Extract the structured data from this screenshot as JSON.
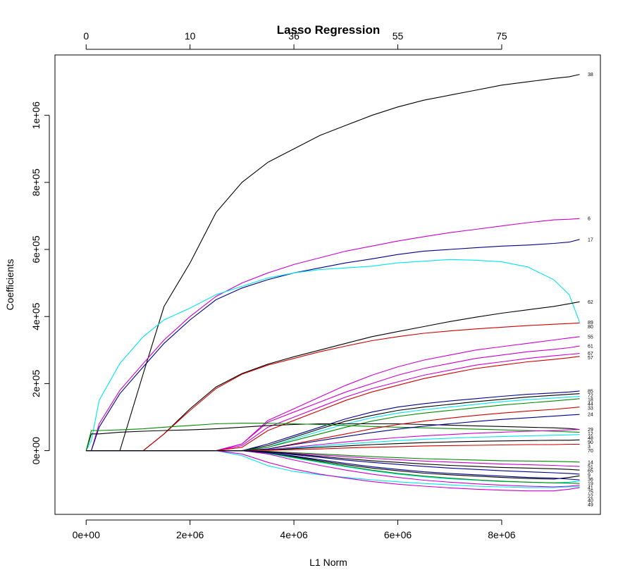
{
  "chart_data": {
    "type": "line",
    "title": "Lasso Regression",
    "xlabel": "L1 Norm",
    "ylabel": "Coefficients",
    "xlim": [
      -600000,
      9900000
    ],
    "ylim": [
      -190000,
      1180000
    ],
    "x_ticks": [
      0,
      2000000,
      4000000,
      6000000,
      8000000
    ],
    "x_tick_labels": [
      "0e+00",
      "2e+06",
      "4e+06",
      "6e+06",
      "8e+06"
    ],
    "y_ticks": [
      0,
      200000,
      400000,
      600000,
      800000,
      1000000
    ],
    "y_tick_labels": [
      "0e+00",
      "2e+05",
      "4e+05",
      "6e+05",
      "8e+05",
      "1e+06"
    ],
    "top_axis_ticks": [
      0,
      2000000,
      4000000,
      6000000,
      8000000
    ],
    "top_axis_labels": [
      "0",
      "10",
      "36",
      "55",
      "75"
    ],
    "grid": false,
    "legend": "none",
    "x": [
      0,
      100000,
      250000,
      650000,
      1100000,
      1500000,
      2000000,
      2500000,
      3000000,
      3500000,
      4000000,
      4500000,
      5000000,
      5500000,
      6000000,
      6500000,
      7000000,
      7500000,
      8000000,
      8500000,
      9000000,
      9300000,
      9500000
    ],
    "series": [
      {
        "name": "38",
        "color": "#000000",
        "values": [
          0,
          0,
          0,
          0,
          230000,
          430000,
          560000,
          710000,
          800000,
          860000,
          900000,
          940000,
          970000,
          1000000,
          1025000,
          1045000,
          1060000,
          1075000,
          1090000,
          1100000,
          1110000,
          1115000,
          1122000
        ]
      },
      {
        "name": "6",
        "color": "#cc00cc",
        "values": [
          0,
          0,
          80000,
          180000,
          260000,
          330000,
          400000,
          460000,
          500000,
          530000,
          555000,
          575000,
          595000,
          610000,
          625000,
          638000,
          650000,
          660000,
          670000,
          680000,
          688000,
          690000,
          692000
        ]
      },
      {
        "name": "17",
        "color": "#00008b",
        "values": [
          0,
          0,
          70000,
          170000,
          250000,
          320000,
          390000,
          450000,
          485000,
          510000,
          530000,
          545000,
          560000,
          572000,
          585000,
          595000,
          600000,
          605000,
          610000,
          613000,
          618000,
          622000,
          630000
        ]
      },
      {
        "name": "89",
        "color": "#00e5ee",
        "values": [
          0,
          30000,
          150000,
          260000,
          340000,
          390000,
          425000,
          465000,
          490000,
          515000,
          530000,
          540000,
          545000,
          550000,
          560000,
          565000,
          570000,
          568000,
          563000,
          548000,
          510000,
          465000,
          383000
        ]
      },
      {
        "name": "62",
        "color": "#000000",
        "values": [
          0,
          0,
          0,
          0,
          0,
          50000,
          125000,
          190000,
          230000,
          258000,
          280000,
          300000,
          320000,
          340000,
          355000,
          370000,
          385000,
          398000,
          410000,
          420000,
          430000,
          438000,
          444000
        ]
      },
      {
        "name": "80",
        "color": "#cd0000",
        "values": [
          0,
          0,
          0,
          0,
          0,
          50000,
          120000,
          185000,
          228000,
          255000,
          275000,
          295000,
          312000,
          328000,
          340000,
          350000,
          357000,
          363000,
          368000,
          373000,
          377000,
          379000,
          381000
        ]
      },
      {
        "name": "55",
        "color": "#cc00cc",
        "values": [
          0,
          0,
          0,
          0,
          0,
          0,
          0,
          0,
          20000,
          90000,
          125000,
          160000,
          195000,
          225000,
          250000,
          270000,
          285000,
          300000,
          310000,
          320000,
          330000,
          336000,
          340000
        ]
      },
      {
        "name": "61",
        "color": "#cc00cc",
        "values": [
          0,
          0,
          0,
          0,
          0,
          0,
          0,
          0,
          20000,
          85000,
          115000,
          145000,
          175000,
          200000,
          225000,
          245000,
          260000,
          275000,
          285000,
          295000,
          302000,
          307000,
          312000
        ]
      },
      {
        "name": "67",
        "color": "#cc00cc",
        "values": [
          0,
          0,
          0,
          0,
          0,
          0,
          0,
          0,
          15000,
          70000,
          100000,
          130000,
          160000,
          185000,
          205000,
          225000,
          240000,
          255000,
          265000,
          275000,
          283000,
          287000,
          290000
        ]
      },
      {
        "name": "57",
        "color": "#cd0000",
        "values": [
          0,
          0,
          0,
          0,
          0,
          0,
          0,
          0,
          10000,
          60000,
          90000,
          120000,
          150000,
          175000,
          195000,
          215000,
          230000,
          245000,
          255000,
          265000,
          272000,
          277000,
          281000
        ]
      },
      {
        "name": "85",
        "color": "#00008b",
        "values": [
          0,
          0,
          0,
          0,
          0,
          0,
          0,
          0,
          0,
          20000,
          45000,
          70000,
          95000,
          115000,
          130000,
          140000,
          148000,
          155000,
          162000,
          168000,
          172000,
          175000,
          178000
        ]
      },
      {
        "name": "72",
        "color": "#000000",
        "values": [
          0,
          0,
          0,
          0,
          0,
          0,
          0,
          0,
          0,
          15000,
          40000,
          65000,
          88000,
          105000,
          120000,
          130000,
          138000,
          146000,
          153000,
          160000,
          165000,
          168000,
          170000
        ]
      },
      {
        "name": "18",
        "color": "#00e5ee",
        "values": [
          0,
          0,
          0,
          0,
          0,
          0,
          0,
          0,
          0,
          10000,
          35000,
          58000,
          80000,
          98000,
          112000,
          122000,
          130000,
          138000,
          146000,
          152000,
          157000,
          160000,
          162000
        ]
      },
      {
        "name": "44",
        "color": "#008b00",
        "values": [
          0,
          0,
          0,
          0,
          0,
          0,
          0,
          0,
          0,
          10000,
          30000,
          50000,
          70000,
          88000,
          102000,
          112000,
          120000,
          128000,
          136000,
          142000,
          148000,
          152000,
          155000
        ]
      },
      {
        "name": "29",
        "color": "#000000",
        "values": [
          0,
          50000,
          50000,
          55000,
          58000,
          60000,
          62000,
          65000,
          70000,
          75000,
          78000,
          80000,
          80000,
          80000,
          80000,
          78000,
          76000,
          74000,
          72000,
          70000,
          68000,
          66000,
          63000
        ]
      },
      {
        "name": "48",
        "color": "#008b00",
        "values": [
          0,
          60000,
          60000,
          62000,
          65000,
          70000,
          75000,
          80000,
          82000,
          82000,
          80000,
          78000,
          75000,
          72000,
          70000,
          68000,
          66000,
          64000,
          62000,
          60000,
          58000,
          56000,
          55000
        ]
      },
      {
        "name": "33",
        "color": "#cd0000",
        "values": [
          0,
          0,
          0,
          0,
          0,
          0,
          0,
          0,
          0,
          5000,
          20000,
          35000,
          50000,
          65000,
          78000,
          88000,
          97000,
          105000,
          112000,
          118000,
          123000,
          127000,
          130000
        ]
      },
      {
        "name": "24",
        "color": "#00008b",
        "values": [
          0,
          0,
          0,
          0,
          0,
          0,
          0,
          0,
          0,
          5000,
          18000,
          30000,
          42000,
          54000,
          64000,
          73000,
          80000,
          87000,
          93000,
          98000,
          103000,
          106000,
          108000
        ]
      },
      {
        "name": "12",
        "color": "#cc00cc",
        "values": [
          0,
          0,
          0,
          0,
          0,
          0,
          0,
          0,
          0,
          3000,
          10000,
          18000,
          26000,
          33000,
          39000,
          44000,
          48000,
          52000,
          55000,
          58000,
          60000,
          62000,
          63000
        ]
      },
      {
        "name": "90",
        "color": "#00e5ee",
        "values": [
          0,
          0,
          0,
          0,
          0,
          0,
          0,
          0,
          0,
          2000,
          8000,
          14000,
          20000,
          25000,
          30000,
          34000,
          37000,
          40000,
          42000,
          44000,
          46000,
          47000,
          48000
        ]
      },
      {
        "name": "3",
        "color": "#000000",
        "values": [
          0,
          0,
          0,
          0,
          0,
          0,
          0,
          0,
          0,
          2000,
          6000,
          10000,
          14000,
          18000,
          21000,
          24000,
          26000,
          28000,
          29000,
          30000,
          31000,
          31000,
          32000
        ]
      },
      {
        "name": "70",
        "color": "#cd0000",
        "values": [
          0,
          0,
          0,
          0,
          0,
          0,
          0,
          0,
          0,
          1000,
          3000,
          5000,
          8000,
          10000,
          12000,
          14000,
          15000,
          16000,
          17000,
          18000,
          18000,
          19000,
          19000
        ]
      },
      {
        "name": "14",
        "color": "#008b00",
        "values": [
          0,
          0,
          0,
          0,
          0,
          0,
          0,
          0,
          0,
          -2000,
          -6000,
          -10000,
          -14000,
          -18000,
          -21000,
          -24000,
          -26000,
          -28000,
          -30000,
          -31000,
          -32000,
          -33000,
          -34000
        ]
      },
      {
        "name": "51",
        "color": "#cc00cc",
        "values": [
          0,
          0,
          0,
          0,
          0,
          0,
          0,
          0,
          0,
          -3000,
          -8000,
          -13000,
          -18000,
          -23000,
          -27000,
          -31000,
          -34000,
          -37000,
          -40000,
          -42000,
          -44000,
          -46000,
          -47000
        ]
      },
      {
        "name": "9",
        "color": "#00008b",
        "values": [
          0,
          0,
          0,
          0,
          0,
          0,
          0,
          0,
          0,
          -4000,
          -12000,
          -20000,
          -28000,
          -35000,
          -41000,
          -47000,
          -52000,
          -56000,
          -60000,
          -63000,
          -66000,
          -68000,
          -70000
        ]
      },
      {
        "name": "36",
        "color": "#000000",
        "values": [
          0,
          0,
          0,
          0,
          0,
          0,
          0,
          0,
          0,
          -6000,
          -18000,
          -30000,
          -42000,
          -52000,
          -60000,
          -67000,
          -72000,
          -76000,
          -80000,
          -83000,
          -85000,
          -80000,
          -75000
        ]
      },
      {
        "name": "41",
        "color": "#00e5ee",
        "values": [
          0,
          0,
          0,
          0,
          0,
          0,
          0,
          0,
          0,
          -8000,
          -22000,
          -35000,
          -48000,
          -60000,
          -70000,
          -78000,
          -84000,
          -88000,
          -92000,
          -94000,
          -96000,
          -94000,
          -90000
        ]
      },
      {
        "name": "75",
        "color": "#008b00",
        "values": [
          0,
          0,
          0,
          0,
          0,
          0,
          0,
          0,
          0,
          -7000,
          -20000,
          -33000,
          -46000,
          -58000,
          -68000,
          -76000,
          -82000,
          -87000,
          -91000,
          -94000,
          -96000,
          -97000,
          -98000
        ]
      },
      {
        "name": "22",
        "color": "#cc00cc",
        "values": [
          0,
          0,
          0,
          0,
          0,
          0,
          0,
          0,
          0,
          -10000,
          -28000,
          -44000,
          -58000,
          -70000,
          -80000,
          -88000,
          -94000,
          -99000,
          -103000,
          -106000,
          -108000,
          -106000,
          -103000
        ]
      },
      {
        "name": "40",
        "color": "#00e5ee",
        "values": [
          0,
          0,
          0,
          0,
          0,
          0,
          0,
          0,
          -15000,
          -45000,
          -62000,
          -72000,
          -80000,
          -87000,
          -93000,
          -98000,
          -102000,
          -106000,
          -108000,
          -110000,
          -110000,
          -108000,
          -107000
        ]
      },
      {
        "name": "49",
        "color": "#cc00cc",
        "values": [
          0,
          0,
          0,
          0,
          0,
          0,
          0,
          0,
          -10000,
          -35000,
          -55000,
          -70000,
          -82000,
          -92000,
          -100000,
          -106000,
          -111000,
          -115000,
          -118000,
          -120000,
          -120000,
          -115000,
          -110000
        ]
      },
      {
        "name": "19",
        "color": "#00008b",
        "values": [
          0,
          0,
          0,
          0,
          0,
          0,
          0,
          0,
          0,
          -6000,
          -16000,
          -27000,
          -38000,
          -48000,
          -56000,
          -63000,
          -68000,
          -72000,
          -76000,
          -80000,
          -82000,
          -85000,
          -87000
        ]
      },
      {
        "name": "65",
        "color": "#000000",
        "values": [
          0,
          0,
          0,
          0,
          0,
          0,
          0,
          0,
          0,
          -3000,
          -10000,
          -17000,
          -24000,
          -30000,
          -35000,
          -40000,
          -44000,
          -47000,
          -50000,
          -52000,
          -54000,
          -56000,
          -58000
        ]
      }
    ]
  }
}
